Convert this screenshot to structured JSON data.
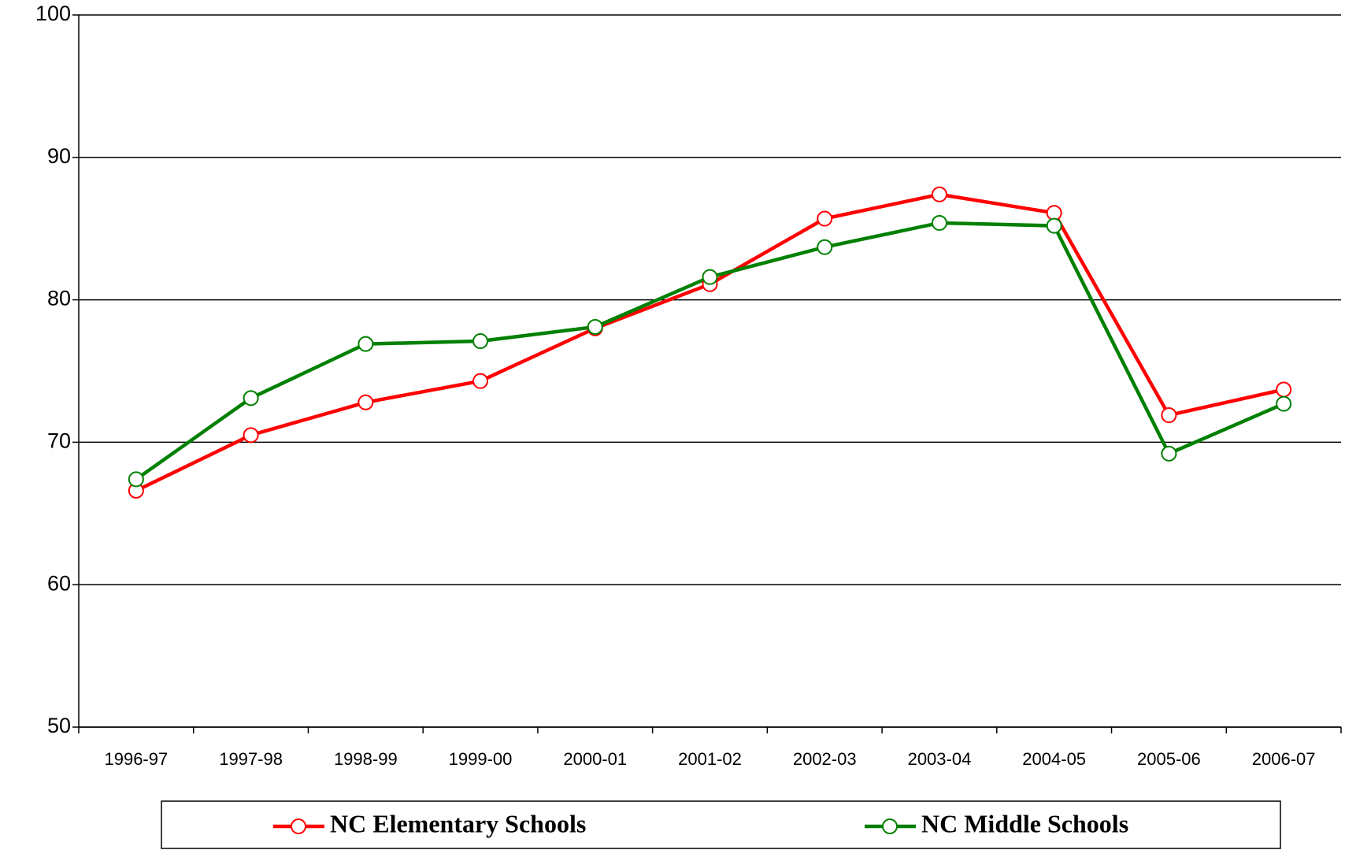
{
  "chart_data": {
    "type": "line",
    "categories": [
      "1996-97",
      "1997-98",
      "1998-99",
      "1999-00",
      "2000-01",
      "2001-02",
      "2002-03",
      "2003-04",
      "2004-05",
      "2005-06",
      "2006-07"
    ],
    "series": [
      {
        "name": "NC Elementary Schools",
        "color": "#ff0000",
        "values": [
          66.6,
          70.5,
          72.8,
          74.3,
          78.0,
          81.1,
          85.7,
          87.4,
          86.1,
          71.9,
          73.7
        ]
      },
      {
        "name": "NC Middle Schools",
        "color": "#008000",
        "values": [
          67.4,
          73.1,
          76.9,
          77.1,
          78.1,
          81.6,
          83.7,
          85.4,
          85.2,
          69.2,
          72.7
        ]
      }
    ],
    "ylim": [
      50,
      100
    ],
    "yticks": [
      50,
      60,
      70,
      80,
      90,
      100
    ],
    "grid": true,
    "legend": "bottom"
  }
}
